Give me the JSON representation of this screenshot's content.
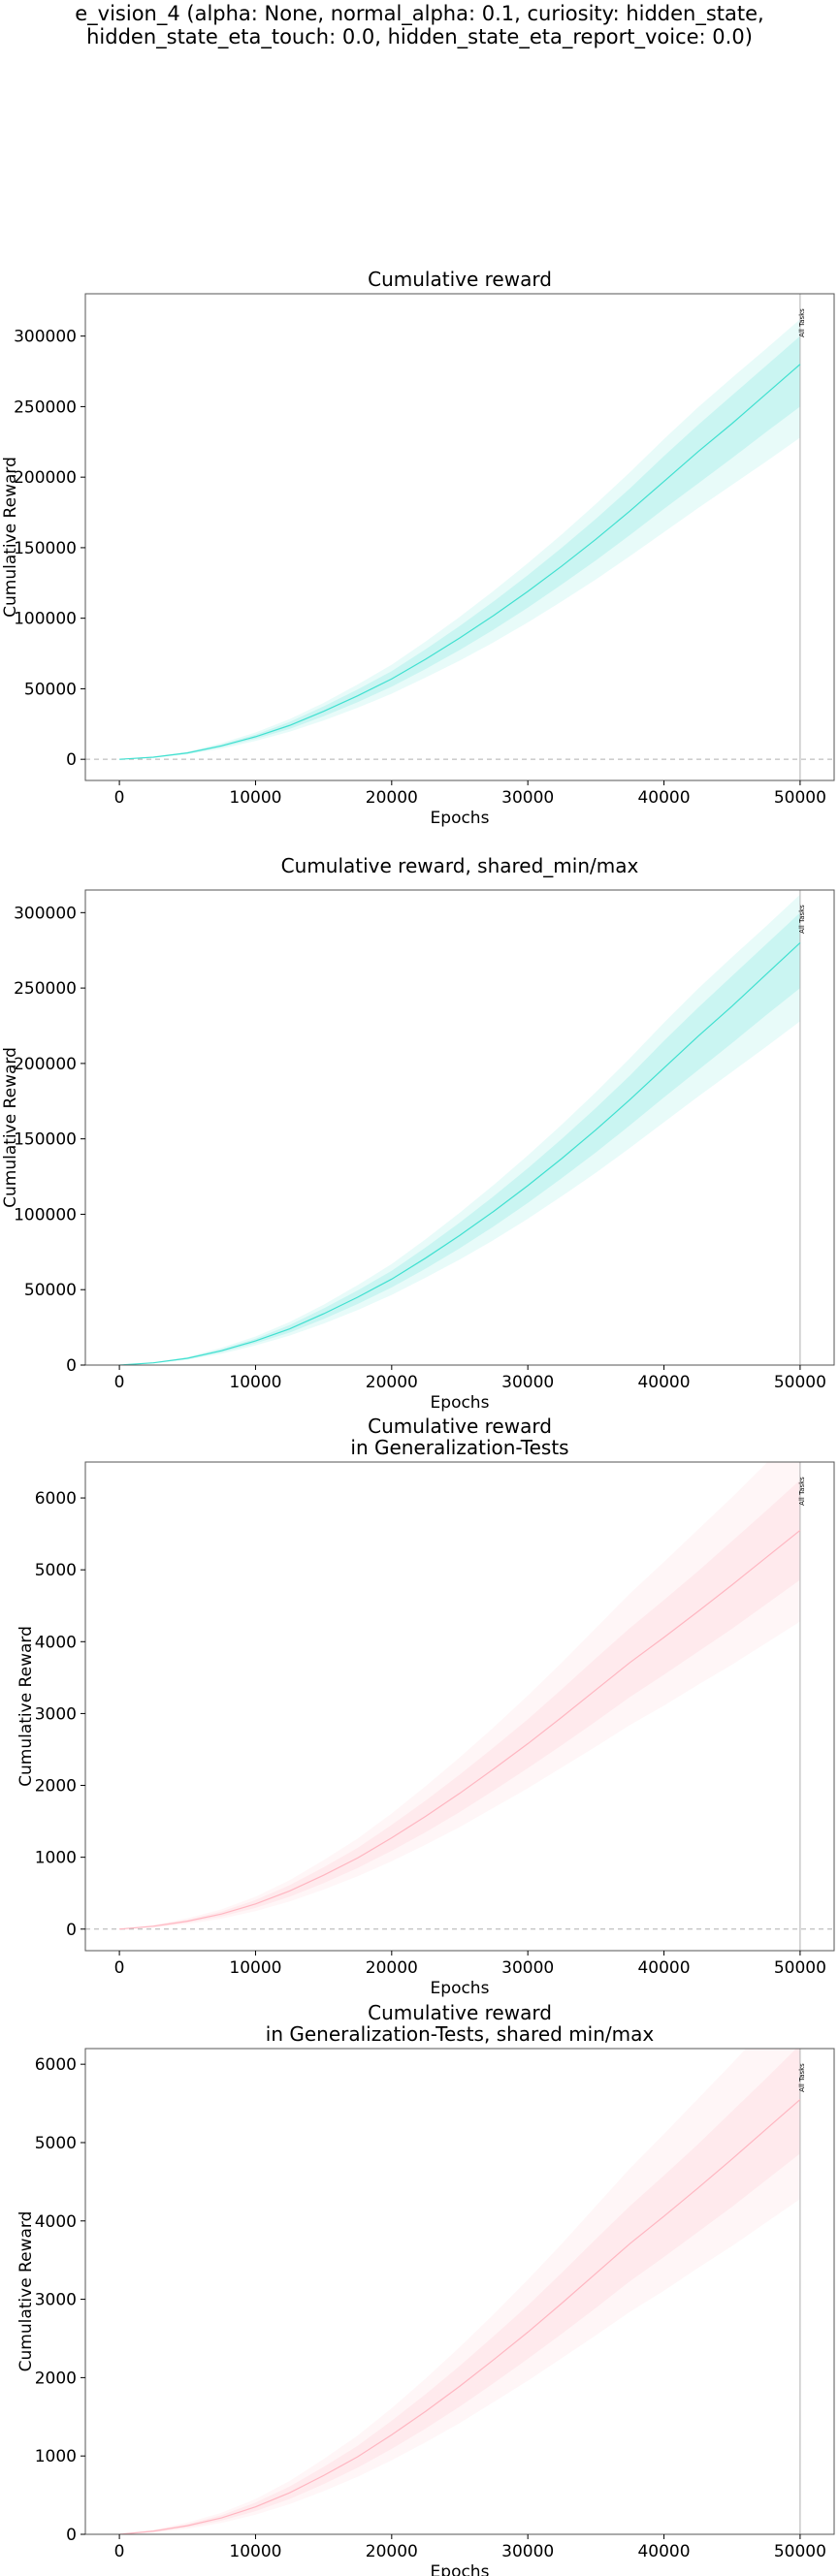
{
  "figure": {
    "suptitle_lines": [
      "e_vision_4 (alpha: None, normal_alpha: 0.1, curiosity: hidden_state,",
      "hidden_state_eta_touch: 0.0, hidden_state_eta_report_voice: 0.0)"
    ]
  },
  "colors": {
    "series_cyan": "#40e0d0",
    "series_pink": "#ffb6c1",
    "axis": "#555555",
    "zero_line": "#b0b0b0",
    "vline": "#b0b0b0"
  },
  "chart_data": [
    {
      "type": "line",
      "title_lines": [
        "Cumulative reward"
      ],
      "xlabel": "Epochs",
      "ylabel": "Cumulative Reward",
      "xlim": [
        -2500,
        52500
      ],
      "ylim": [
        -15000,
        330000
      ],
      "xticks": [
        0,
        10000,
        20000,
        30000,
        40000,
        50000
      ],
      "yticks": [
        0,
        50000,
        100000,
        150000,
        200000,
        250000,
        300000
      ],
      "zero_line": true,
      "vline_x": 50000,
      "vline_label": "All Tasks",
      "color_key": "series_cyan",
      "x": [
        0,
        2500,
        5000,
        7500,
        10000,
        12500,
        15000,
        17500,
        20000,
        22500,
        25000,
        27500,
        30000,
        32500,
        35000,
        37500,
        40000,
        42500,
        45000,
        47500,
        50000
      ],
      "mean": [
        0,
        1500,
        4500,
        9500,
        16000,
        24000,
        34000,
        45000,
        57000,
        71000,
        86000,
        102000,
        119000,
        137000,
        156000,
        176000,
        197000,
        218000,
        238000,
        259000,
        280000
      ],
      "inner_low": [
        0,
        1300,
        4000,
        8500,
        14500,
        21500,
        30500,
        40500,
        51500,
        64000,
        77500,
        92000,
        107500,
        124000,
        141000,
        159000,
        177500,
        195500,
        213500,
        232000,
        250000
      ],
      "inner_high": [
        0,
        1700,
        5000,
        10500,
        17500,
        26500,
        37500,
        49500,
        62500,
        78000,
        94500,
        112000,
        130500,
        150000,
        170500,
        192000,
        215000,
        237000,
        258000,
        279000,
        300000
      ],
      "outer_low": [
        0,
        1100,
        3500,
        7500,
        13000,
        19500,
        27500,
        36500,
        46500,
        58000,
        70000,
        83000,
        97000,
        112000,
        127500,
        144000,
        161000,
        178000,
        194500,
        211000,
        228000
      ],
      "outer_high": [
        0,
        1900,
        5500,
        11500,
        19000,
        28500,
        40000,
        53000,
        67000,
        83500,
        101000,
        119500,
        139000,
        159500,
        181000,
        203500,
        227000,
        249500,
        270500,
        291000,
        312000
      ]
    },
    {
      "type": "line",
      "title_lines": [
        "Cumulative reward, shared_min/max"
      ],
      "xlabel": "Epochs",
      "ylabel": "Cumulative Reward",
      "xlim": [
        -2500,
        52500
      ],
      "ylim": [
        0,
        315000
      ],
      "xticks": [
        0,
        10000,
        20000,
        30000,
        40000,
        50000
      ],
      "yticks": [
        0,
        50000,
        100000,
        150000,
        200000,
        250000,
        300000
      ],
      "zero_line": false,
      "vline_x": 50000,
      "vline_label": "All Tasks",
      "color_key": "series_cyan",
      "x": [
        0,
        2500,
        5000,
        7500,
        10000,
        12500,
        15000,
        17500,
        20000,
        22500,
        25000,
        27500,
        30000,
        32500,
        35000,
        37500,
        40000,
        42500,
        45000,
        47500,
        50000
      ],
      "mean": [
        0,
        1500,
        4500,
        9500,
        16000,
        24000,
        34000,
        45000,
        57000,
        71000,
        86000,
        102000,
        119000,
        137000,
        156000,
        176000,
        197000,
        218000,
        238000,
        259000,
        280000
      ],
      "inner_low": [
        0,
        1300,
        4000,
        8500,
        14500,
        21500,
        30500,
        40500,
        51500,
        64000,
        77500,
        92000,
        107500,
        124000,
        141000,
        159000,
        177500,
        195500,
        213500,
        232000,
        250000
      ],
      "inner_high": [
        0,
        1700,
        5000,
        10500,
        17500,
        26500,
        37500,
        49500,
        62500,
        78000,
        94500,
        112000,
        130500,
        150000,
        170500,
        192000,
        215000,
        237000,
        258000,
        279000,
        300000
      ],
      "outer_low": [
        0,
        1100,
        3500,
        7500,
        13000,
        19500,
        27500,
        36500,
        46500,
        58000,
        70000,
        83000,
        97000,
        112000,
        127500,
        144000,
        161000,
        178000,
        194500,
        211000,
        228000
      ],
      "outer_high": [
        0,
        1900,
        5500,
        11500,
        19000,
        28500,
        40000,
        53000,
        67000,
        83500,
        101000,
        119500,
        139000,
        159500,
        181000,
        203500,
        227000,
        249500,
        270500,
        291000,
        312000
      ]
    },
    {
      "type": "line",
      "title_lines": [
        "Cumulative reward",
        "in Generalization-Tests"
      ],
      "xlabel": "Epochs",
      "ylabel": "Cumulative Reward",
      "xlim": [
        -2500,
        52500
      ],
      "ylim": [
        -300,
        6500
      ],
      "xticks": [
        0,
        10000,
        20000,
        30000,
        40000,
        50000
      ],
      "yticks": [
        0,
        1000,
        2000,
        3000,
        4000,
        5000,
        6000
      ],
      "zero_line": true,
      "vline_x": 50000,
      "vline_label": "All Tasks",
      "color_key": "series_pink",
      "x": [
        0,
        2500,
        5000,
        7500,
        10000,
        12500,
        15000,
        17500,
        20000,
        22500,
        25000,
        27500,
        30000,
        32500,
        35000,
        37500,
        40000,
        42500,
        45000,
        47500,
        50000
      ],
      "mean": [
        0,
        40,
        110,
        210,
        350,
        530,
        750,
        990,
        1270,
        1570,
        1890,
        2230,
        2580,
        2950,
        3330,
        3710,
        4060,
        4420,
        4790,
        5170,
        5550
      ],
      "inner_low": [
        0,
        30,
        90,
        175,
        295,
        450,
        640,
        850,
        1090,
        1350,
        1630,
        1930,
        2240,
        2560,
        2890,
        3230,
        3540,
        3860,
        4180,
        4520,
        4860
      ],
      "inner_high": [
        0,
        50,
        130,
        245,
        405,
        610,
        860,
        1130,
        1450,
        1790,
        2150,
        2530,
        2920,
        3340,
        3770,
        4190,
        4580,
        4980,
        5400,
        5820,
        6250
      ],
      "outer_low": [
        0,
        20,
        70,
        145,
        250,
        385,
        550,
        735,
        945,
        1175,
        1420,
        1690,
        1960,
        2250,
        2540,
        2840,
        3110,
        3400,
        3680,
        3980,
        4280
      ],
      "outer_high": [
        0,
        60,
        150,
        275,
        450,
        680,
        960,
        1260,
        1610,
        1990,
        2390,
        2810,
        3250,
        3710,
        4190,
        4670,
        5110,
        5560,
        6010,
        6480,
        6950
      ]
    },
    {
      "type": "line",
      "title_lines": [
        "Cumulative reward",
        "in Generalization-Tests, shared min/max"
      ],
      "xlabel": "Epochs",
      "ylabel": "Cumulative Reward",
      "xlim": [
        -2500,
        52500
      ],
      "ylim": [
        0,
        6200
      ],
      "xticks": [
        0,
        10000,
        20000,
        30000,
        40000,
        50000
      ],
      "yticks": [
        0,
        1000,
        2000,
        3000,
        4000,
        5000,
        6000
      ],
      "zero_line": false,
      "vline_x": 50000,
      "vline_label": "All Tasks",
      "color_key": "series_pink",
      "x": [
        0,
        2500,
        5000,
        7500,
        10000,
        12500,
        15000,
        17500,
        20000,
        22500,
        25000,
        27500,
        30000,
        32500,
        35000,
        37500,
        40000,
        42500,
        45000,
        47500,
        50000
      ],
      "mean": [
        0,
        40,
        110,
        210,
        350,
        530,
        750,
        990,
        1270,
        1570,
        1890,
        2230,
        2580,
        2950,
        3330,
        3710,
        4060,
        4420,
        4790,
        5170,
        5550
      ],
      "inner_low": [
        0,
        30,
        90,
        175,
        295,
        450,
        640,
        850,
        1090,
        1350,
        1630,
        1930,
        2240,
        2560,
        2890,
        3230,
        3540,
        3860,
        4180,
        4520,
        4860
      ],
      "inner_high": [
        0,
        50,
        130,
        245,
        405,
        610,
        860,
        1130,
        1450,
        1790,
        2150,
        2530,
        2920,
        3340,
        3770,
        4190,
        4580,
        4980,
        5400,
        5820,
        6250
      ],
      "outer_low": [
        0,
        20,
        70,
        145,
        250,
        385,
        550,
        735,
        945,
        1175,
        1420,
        1690,
        1960,
        2250,
        2540,
        2840,
        3110,
        3400,
        3680,
        3980,
        4280
      ],
      "outer_high": [
        0,
        60,
        150,
        275,
        450,
        680,
        960,
        1260,
        1610,
        1990,
        2390,
        2810,
        3250,
        3710,
        4190,
        4670,
        5110,
        5560,
        6010,
        6480,
        6950
      ]
    }
  ]
}
